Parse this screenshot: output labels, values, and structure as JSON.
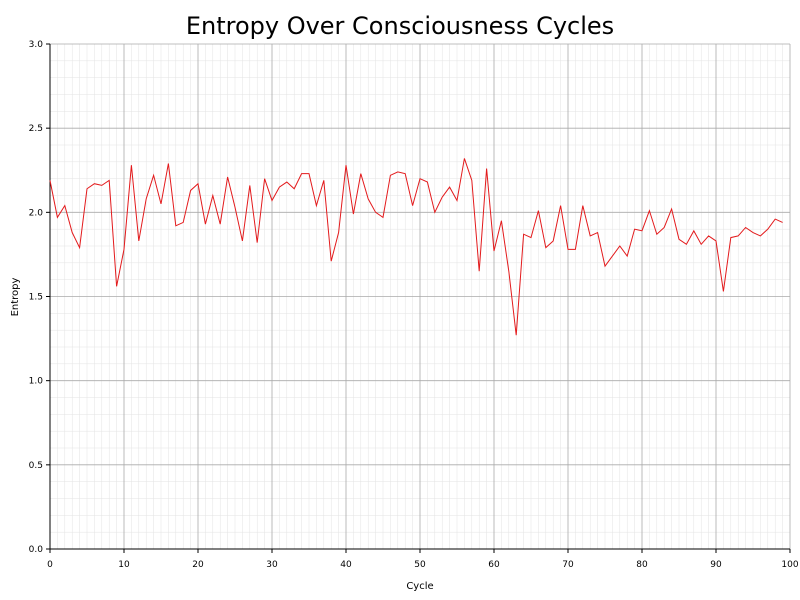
{
  "chart_data": {
    "type": "line",
    "title": "Entropy Over Consciousness Cycles",
    "xlabel": "Cycle",
    "ylabel": "Entropy",
    "xlim": [
      0,
      100
    ],
    "ylim": [
      0.0,
      3.0
    ],
    "x_ticks": [
      0,
      10,
      20,
      30,
      40,
      50,
      60,
      70,
      80,
      90,
      100
    ],
    "x_tick_labels": [
      "0",
      "10",
      "20",
      "30",
      "40",
      "50",
      "60",
      "70",
      "80",
      "90",
      "100"
    ],
    "y_ticks": [
      0.0,
      0.5,
      1.0,
      1.5,
      2.0,
      2.5,
      3.0
    ],
    "y_tick_labels": [
      "0.0",
      "0.5",
      "1.0",
      "1.5",
      "2.0",
      "2.5",
      "3.0"
    ],
    "grid": true,
    "minor_grid": true,
    "line_color": "#e31a1c",
    "series": [
      {
        "x": [
          0,
          1,
          2,
          3,
          4,
          5,
          6,
          7,
          8,
          9,
          10,
          11,
          12,
          13,
          14,
          15,
          16,
          17,
          18,
          19,
          20,
          21,
          22,
          23,
          24,
          25,
          26,
          27,
          28,
          29,
          30,
          31,
          32,
          33,
          34,
          35,
          36,
          37,
          38,
          39,
          40,
          41,
          42,
          43,
          44,
          45,
          46,
          47,
          48,
          49,
          50,
          51,
          52,
          53,
          54,
          55,
          56,
          57,
          58,
          59,
          60,
          61,
          62,
          63,
          64,
          65,
          66,
          67,
          68,
          69,
          70,
          71,
          72,
          73,
          74,
          75,
          76,
          77,
          78,
          79,
          80,
          81,
          82,
          83,
          84,
          85,
          86,
          87,
          88,
          89,
          90,
          91,
          92,
          93,
          94,
          95,
          96,
          97,
          98,
          99
        ],
        "values": [
          2.19,
          1.97,
          2.04,
          1.88,
          1.79,
          2.14,
          2.17,
          2.16,
          2.19,
          1.56,
          1.78,
          2.28,
          1.83,
          2.08,
          2.22,
          2.05,
          2.29,
          1.92,
          1.94,
          2.13,
          2.17,
          1.93,
          2.1,
          1.93,
          2.21,
          2.03,
          1.83,
          2.16,
          1.82,
          2.2,
          2.07,
          2.15,
          2.18,
          2.14,
          2.23,
          2.23,
          2.04,
          2.19,
          1.71,
          1.88,
          2.28,
          1.99,
          2.23,
          2.08,
          2.0,
          1.97,
          2.22,
          2.24,
          2.23,
          2.04,
          2.2,
          2.18,
          2.0,
          2.09,
          2.15,
          2.07,
          2.32,
          2.19,
          1.65,
          2.26,
          1.77,
          1.95,
          1.65,
          1.27,
          1.87,
          1.85,
          2.01,
          1.79,
          1.83,
          2.04,
          1.78,
          1.78,
          2.04,
          1.86,
          1.88,
          1.68,
          1.74,
          1.8,
          1.74,
          1.9,
          1.89,
          2.01,
          1.87,
          1.91,
          2.02,
          1.84,
          1.81,
          1.89,
          1.81,
          1.86,
          1.83,
          1.53,
          1.85,
          1.86,
          1.91,
          1.88,
          1.86,
          1.9,
          1.96,
          1.94
        ]
      }
    ]
  }
}
